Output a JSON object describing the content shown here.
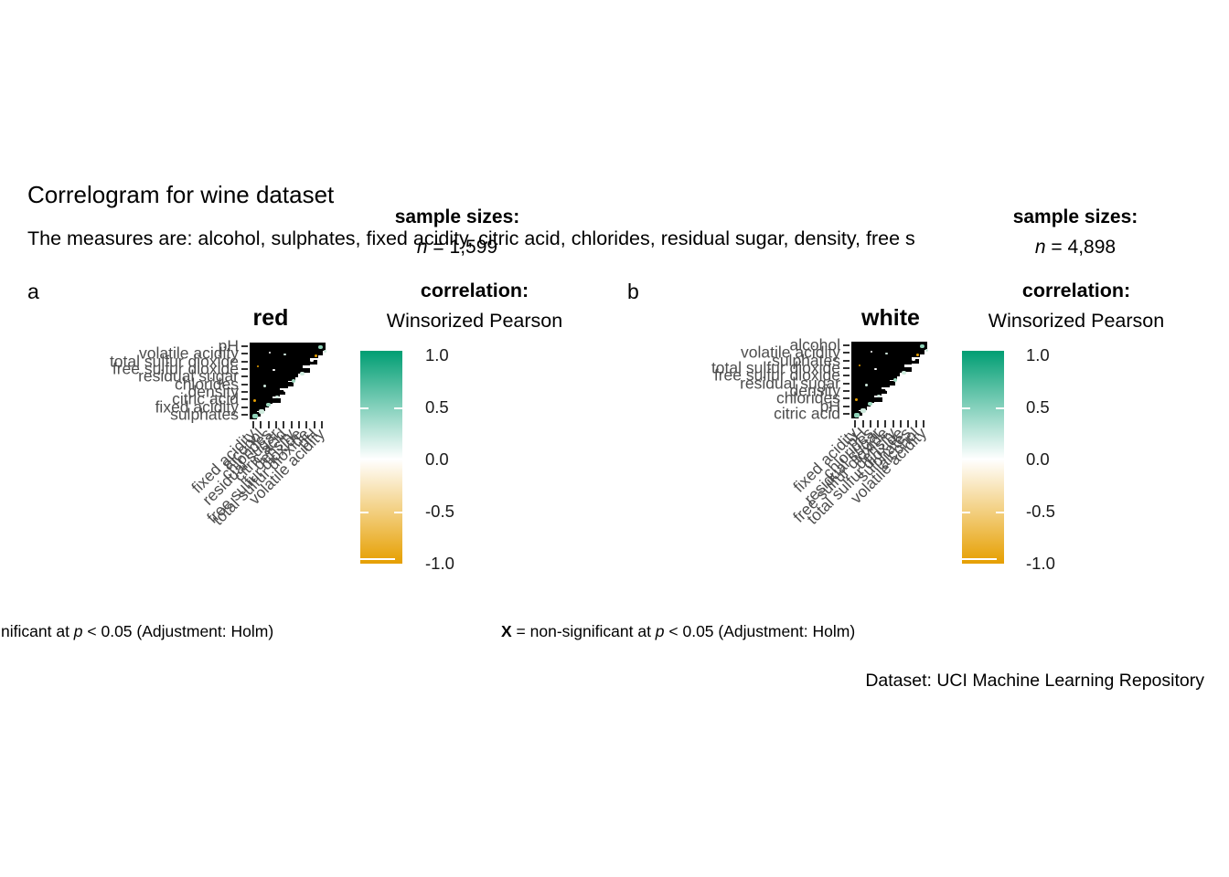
{
  "texts": {
    "title": "Correlogram for wine dataset",
    "subtitle": "The measures are: alcohol, sulphates, fixed acidity, citric acid, chlorides, residual sugar, density, free s",
    "sample_sizes_heading": "sample sizes:",
    "n_symbol": "n",
    "sig_caption": {
      "x_bold": "X",
      "mid": " = non-significant at ",
      "p_italic": "p",
      "rest": " < 0.05 (Adjustment: Holm)"
    },
    "dataset_caption": "Dataset: UCI Machine Learning Repository"
  },
  "legend": {
    "title": "correlation:",
    "subtitle": "Winsorized Pearson",
    "tick_labels": [
      "1.0",
      "0.5",
      "0.0",
      "-0.5",
      "-1.0"
    ],
    "range": [
      -1.0,
      1.0
    ],
    "high_color": "#009E73",
    "mid_color": "#FFFFFF",
    "low_color": "#E69F00"
  },
  "chart_data": [
    {
      "type": "heatmap",
      "panel_tag": "a",
      "title": "red",
      "sample_size_value": " = 1,599",
      "n": 1599,
      "matrix_form": "upper-triangle correlation matrix, 10x10; coefficient text overplotted into solid black (values illegible)",
      "y_labels": [
        "pH",
        "volatile acidity",
        "total sulfur dioxide",
        "free sulfur dioxide",
        "residual sugar",
        "chlorides",
        "density",
        "citric acid",
        "fixed acidity",
        "sulphates"
      ],
      "x_labels": [
        "fixed acidity",
        "alcohol",
        "chlorides",
        "residual sugar",
        "citric acid",
        "density",
        "free sulfur dioxide",
        "total sulfur dioxide",
        "pH",
        "volatile acidity"
      ]
    },
    {
      "type": "heatmap",
      "panel_tag": "b",
      "title": "white",
      "sample_size_value": " = 4,898",
      "n": 4898,
      "matrix_form": "upper-triangle correlation matrix, 10x10; coefficient text overplotted into solid black (values illegible)",
      "y_labels": [
        "alcohol",
        "volatile acidity",
        "sulphates",
        "total sulfur dioxide",
        "free sulfur dioxide",
        "residual sugar",
        "density",
        "chlorides",
        "pH",
        "citric acid"
      ],
      "x_labels": [
        "fixed acidity",
        "pH",
        "chlorides",
        "residual sugar",
        "free sulfur dioxide",
        "density",
        "total sulfur dioxide",
        "sulphates",
        "alcohol",
        "volatile acidity"
      ]
    }
  ]
}
